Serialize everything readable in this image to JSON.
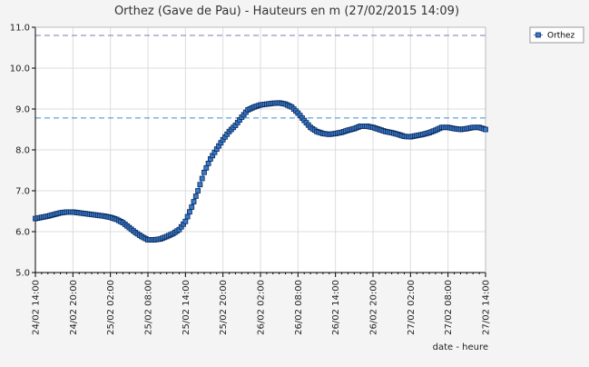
{
  "chart_data": {
    "type": "scatter",
    "title": "Orthez (Gave de Pau) - Hauteurs en m (27/02/2015 14:09)",
    "xlabel": "date - heure",
    "ylabel": "",
    "ylim": [
      5.0,
      11.0
    ],
    "yticks": [
      "5.0",
      "6.0",
      "7.0",
      "8.0",
      "9.0",
      "10.0",
      "11.0"
    ],
    "xticks": [
      "24/02 14:00",
      "24/02 20:00",
      "25/02 02:00",
      "25/02 08:00",
      "25/02 14:00",
      "25/02 20:00",
      "26/02 02:00",
      "26/02 08:00",
      "26/02 14:00",
      "26/02 20:00",
      "27/02 02:00",
      "27/02 08:00",
      "27/02 14:00"
    ],
    "grid": true,
    "legend_position": "top-right",
    "reference_lines": [
      {
        "value": 10.8,
        "color": "#7a7ab8"
      },
      {
        "value": 8.78,
        "color": "#3a8ccf"
      }
    ],
    "series": [
      {
        "name": "Orthez",
        "color": "#3a78c8",
        "x_hours": [
          0,
          1,
          2,
          3,
          4,
          5,
          6,
          7,
          8,
          9,
          10,
          11,
          12,
          13,
          14,
          15,
          16,
          17,
          18,
          19,
          20,
          21,
          22,
          23,
          24,
          25,
          26,
          27,
          28,
          29,
          30,
          31,
          32,
          33,
          34,
          35,
          36,
          37,
          38,
          39,
          40,
          41,
          42,
          43,
          44,
          45,
          46,
          47,
          48,
          49,
          50,
          51,
          52,
          53,
          54,
          55,
          56,
          57,
          58,
          59,
          60,
          61,
          62,
          63,
          64,
          65,
          66,
          67,
          68,
          69,
          70,
          71,
          72
        ],
        "values": [
          6.32,
          6.35,
          6.38,
          6.42,
          6.46,
          6.48,
          6.48,
          6.46,
          6.44,
          6.42,
          6.4,
          6.38,
          6.35,
          6.3,
          6.22,
          6.1,
          5.98,
          5.88,
          5.8,
          5.8,
          5.82,
          5.88,
          5.95,
          6.05,
          6.25,
          6.6,
          7.0,
          7.45,
          7.78,
          8.02,
          8.25,
          8.45,
          8.6,
          8.8,
          8.98,
          9.05,
          9.1,
          9.12,
          9.14,
          9.15,
          9.12,
          9.05,
          8.9,
          8.72,
          8.55,
          8.45,
          8.4,
          8.38,
          8.4,
          8.43,
          8.48,
          8.52,
          8.58,
          8.58,
          8.55,
          8.5,
          8.45,
          8.42,
          8.38,
          8.33,
          8.32,
          8.35,
          8.38,
          8.42,
          8.48,
          8.55,
          8.55,
          8.52,
          8.5,
          8.52,
          8.55,
          8.55,
          8.5
        ]
      }
    ]
  }
}
